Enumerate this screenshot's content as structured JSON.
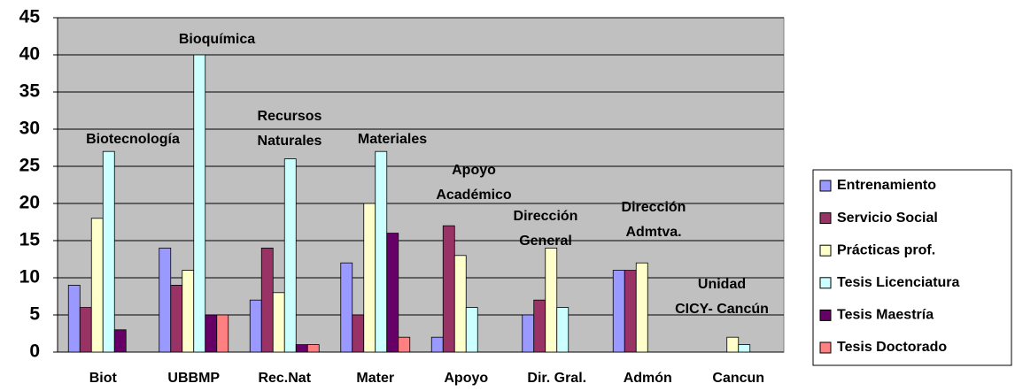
{
  "chart_data": {
    "type": "bar",
    "categories": [
      "Biot",
      "UBBMP",
      "Rec.Nat",
      "Mater",
      "Apoyo",
      "Dir. Gral.",
      "Admón",
      "Cancun"
    ],
    "series": [
      {
        "name": "Entrenamiento",
        "color": "#9999ff",
        "values": [
          9,
          14,
          7,
          12,
          2,
          5,
          11,
          0
        ]
      },
      {
        "name": "Servicio Social",
        "color": "#993366",
        "values": [
          6,
          9,
          14,
          5,
          17,
          7,
          11,
          0
        ]
      },
      {
        "name": "Prácticas prof.",
        "color": "#ffffcc",
        "values": [
          18,
          11,
          8,
          20,
          13,
          14,
          12,
          2
        ]
      },
      {
        "name": "Tesis Licenciatura",
        "color": "#ccffff",
        "values": [
          27,
          40,
          26,
          27,
          6,
          6,
          0,
          1
        ]
      },
      {
        "name": "Tesis Maestría",
        "color": "#660066",
        "values": [
          3,
          5,
          1,
          16,
          0,
          0,
          0,
          0
        ]
      },
      {
        "name": "Tesis Doctorado",
        "color": "#ff8080",
        "values": [
          0,
          5,
          1,
          2,
          0,
          0,
          0,
          0
        ]
      }
    ],
    "annotations": [
      {
        "lines": [
          "Biotecnología"
        ]
      },
      {
        "lines": [
          "Bioquímica"
        ]
      },
      {
        "lines": [
          "Recursos",
          "Naturales"
        ]
      },
      {
        "lines": [
          "Materiales"
        ]
      },
      {
        "lines": [
          "Apoyo",
          "Académico"
        ]
      },
      {
        "lines": [
          "Dirección",
          "General"
        ]
      },
      {
        "lines": [
          "Dirección",
          "Admtva."
        ]
      },
      {
        "lines": [
          "Unidad",
          "CICY- Cancún"
        ]
      }
    ],
    "ylim": [
      0,
      45
    ],
    "yticks": [
      0,
      5,
      10,
      15,
      20,
      25,
      30,
      35,
      40,
      45
    ],
    "grid": true,
    "legend": "right"
  }
}
